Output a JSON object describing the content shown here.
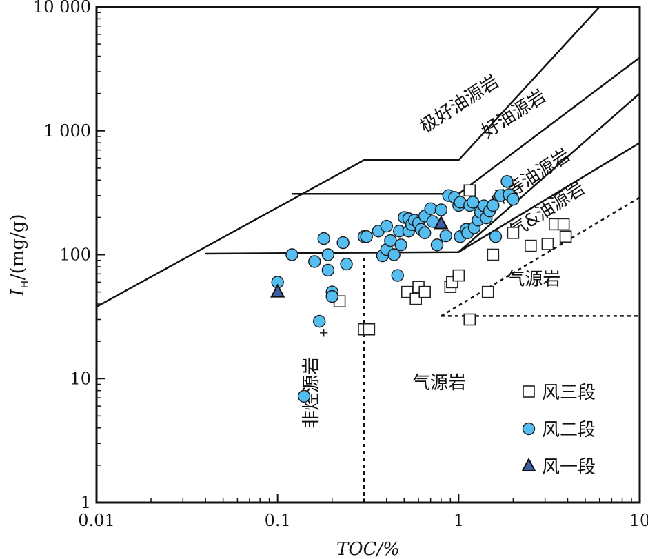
{
  "chart_data": {
    "type": "scatter",
    "xscale": "log",
    "yscale": "log",
    "xlim": [
      0.01,
      10
    ],
    "ylim": [
      1,
      10000
    ],
    "xlabel": "TOC/%",
    "ylabel_main": "I",
    "ylabel_sub": "H",
    "ylabel_rest": "/(mg/g)",
    "x_ticks": [
      {
        "value": 0.01,
        "label": "0.01"
      },
      {
        "value": 0.1,
        "label": "0.1"
      },
      {
        "value": 1,
        "label": "1"
      },
      {
        "value": 10,
        "label": "10"
      }
    ],
    "y_ticks": [
      {
        "value": 1,
        "label": "1"
      },
      {
        "value": 10,
        "label": "10"
      },
      {
        "value": 100,
        "label": "100"
      },
      {
        "value": 1000,
        "label": "1 000"
      },
      {
        "value": 10000,
        "label": "10 000"
      }
    ],
    "boundaries": [
      {
        "name": "excellent-boundary",
        "style": "solid",
        "points": [
          [
            0.01,
            38
          ],
          [
            0.3,
            580
          ],
          [
            1,
            580
          ],
          [
            6,
            10000
          ]
        ]
      },
      {
        "name": "good-boundary",
        "style": "solid",
        "points": [
          [
            0.12,
            310
          ],
          [
            1,
            310
          ],
          [
            10,
            3900
          ]
        ]
      },
      {
        "name": "medium-boundary",
        "style": "solid",
        "points": [
          [
            0.04,
            102
          ],
          [
            1,
            105
          ],
          [
            10,
            2000
          ]
        ]
      },
      {
        "name": "gas-oil-boundary",
        "style": "solid",
        "points": [
          [
            1,
            105
          ],
          [
            10,
            800
          ]
        ]
      },
      {
        "name": "gas-upper-boundary",
        "style": "dashed",
        "points": [
          [
            0.8,
            32
          ],
          [
            10,
            290
          ]
        ]
      },
      {
        "name": "gas-horizontal-boundary",
        "style": "dashed",
        "points": [
          [
            0.8,
            32
          ],
          [
            10,
            32
          ]
        ]
      },
      {
        "name": "toc-cutoff",
        "style": "dashed",
        "points": [
          [
            0.3,
            1
          ],
          [
            0.3,
            102
          ]
        ]
      }
    ],
    "regions": [
      {
        "name": "excellent-source-label",
        "label": "极好油源岩",
        "x": 1.05,
        "y": 1500,
        "rotate": -33
      },
      {
        "name": "good-source-label",
        "label": "好油源岩",
        "x": 2.1,
        "y": 1250,
        "rotate": -33
      },
      {
        "name": "medium-source-label",
        "label": "中等油源岩",
        "x": 2.6,
        "y": 380,
        "rotate": -33
      },
      {
        "name": "gas-oil-source-label",
        "label": "气&油源岩",
        "x": 3.2,
        "y": 210,
        "rotate": -33
      },
      {
        "name": "gas-source-label-right",
        "label": "气源岩",
        "x": 2.6,
        "y": 57,
        "rotate": 0
      },
      {
        "name": "gas-source-label-lower",
        "label": "气源岩",
        "x": 0.78,
        "y": 8.3,
        "rotate": 0
      },
      {
        "name": "non-source-label",
        "label": "非烃源岩",
        "x": 0.165,
        "y": 7.7,
        "rotate": -90
      }
    ],
    "series": [
      {
        "name": "风三段",
        "marker": "square",
        "color": "#ffffff",
        "points": [
          [
            1.15,
            330
          ],
          [
            0.22,
            42
          ],
          [
            0.3,
            25
          ],
          [
            0.32,
            25
          ],
          [
            0.52,
            50
          ],
          [
            0.58,
            44
          ],
          [
            0.6,
            55
          ],
          [
            0.65,
            50
          ],
          [
            0.9,
            55
          ],
          [
            0.92,
            60
          ],
          [
            1.0,
            68
          ],
          [
            1.15,
            30
          ],
          [
            1.45,
            50
          ],
          [
            1.55,
            100
          ],
          [
            2.0,
            150
          ],
          [
            2.5,
            118
          ],
          [
            3.1,
            122
          ],
          [
            3.4,
            176
          ],
          [
            3.8,
            176
          ],
          [
            3.9,
            140
          ]
        ]
      },
      {
        "name": "风二段",
        "marker": "circle",
        "color": "#56bdf0",
        "points": [
          [
            0.1,
            60
          ],
          [
            0.12,
            100
          ],
          [
            0.14,
            7.2
          ],
          [
            0.17,
            29
          ],
          [
            0.16,
            88
          ],
          [
            0.18,
            135
          ],
          [
            0.19,
            100
          ],
          [
            0.19,
            75
          ],
          [
            0.2,
            50
          ],
          [
            0.2,
            46
          ],
          [
            0.23,
            125
          ],
          [
            0.24,
            84
          ],
          [
            0.3,
            140
          ],
          [
            0.31,
            140
          ],
          [
            0.36,
            155
          ],
          [
            0.38,
            98
          ],
          [
            0.4,
            110
          ],
          [
            0.4,
            170
          ],
          [
            0.42,
            130
          ],
          [
            0.44,
            100
          ],
          [
            0.46,
            68
          ],
          [
            0.47,
            155
          ],
          [
            0.48,
            120
          ],
          [
            0.5,
            200
          ],
          [
            0.53,
            155
          ],
          [
            0.53,
            195
          ],
          [
            0.55,
            175
          ],
          [
            0.57,
            190
          ],
          [
            0.6,
            180
          ],
          [
            0.62,
            160
          ],
          [
            0.65,
            150
          ],
          [
            0.65,
            205
          ],
          [
            0.7,
            235
          ],
          [
            0.72,
            185
          ],
          [
            0.76,
            120
          ],
          [
            0.8,
            230
          ],
          [
            0.85,
            142
          ],
          [
            0.88,
            300
          ],
          [
            0.95,
            290
          ],
          [
            1.0,
            250
          ],
          [
            1.02,
            265
          ],
          [
            1.02,
            140
          ],
          [
            1.1,
            160
          ],
          [
            1.12,
            150
          ],
          [
            1.15,
            250
          ],
          [
            1.2,
            265
          ],
          [
            1.22,
            165
          ],
          [
            1.28,
            190
          ],
          [
            1.32,
            220
          ],
          [
            1.38,
            248
          ],
          [
            1.42,
            198
          ],
          [
            1.48,
            225
          ],
          [
            1.55,
            250
          ],
          [
            1.6,
            140
          ],
          [
            1.7,
            300
          ],
          [
            1.85,
            390
          ],
          [
            1.9,
            305
          ],
          [
            2.0,
            280
          ]
        ]
      },
      {
        "name": "风一段",
        "marker": "triangle",
        "color": "#3d60a6",
        "points": [
          [
            0.1,
            50
          ],
          [
            0.8,
            178
          ]
        ]
      }
    ],
    "annotations": [
      {
        "name": "plus-marker",
        "label": "+",
        "x": 0.18,
        "y": 23.5
      }
    ],
    "legend": {
      "position": "bottom-right",
      "entries": [
        {
          "label": "风三段",
          "marker": "square"
        },
        {
          "label": "风二段",
          "marker": "circle"
        },
        {
          "label": "风一段",
          "marker": "triangle"
        }
      ]
    }
  }
}
